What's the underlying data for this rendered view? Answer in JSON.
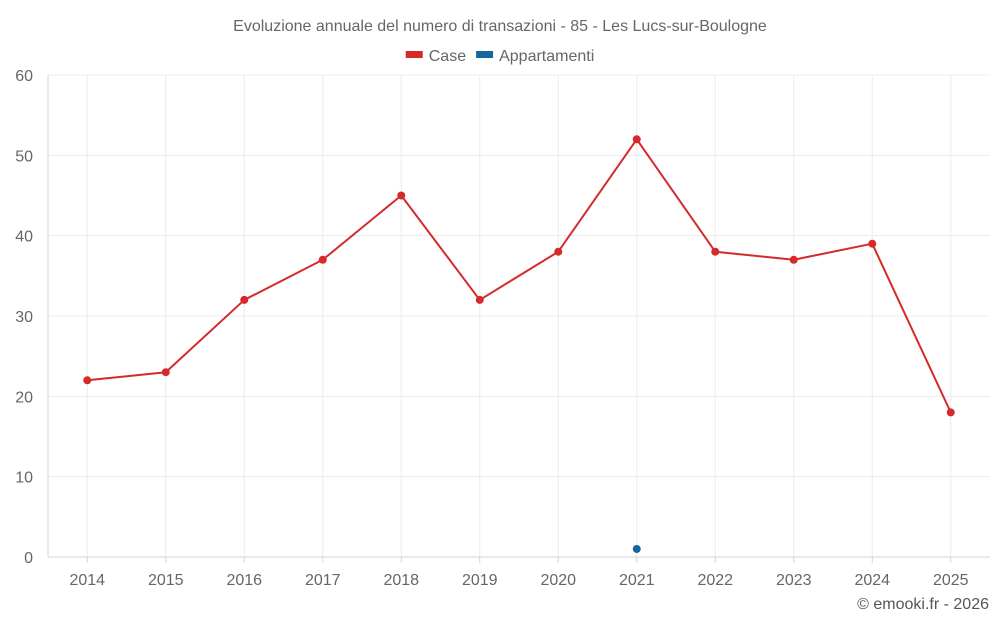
{
  "chart_data": {
    "type": "line",
    "title": "Evoluzione annuale del numero di transazioni - 85 - Les Lucs-sur-Boulogne",
    "categories": [
      "2014",
      "2015",
      "2016",
      "2017",
      "2018",
      "2019",
      "2020",
      "2021",
      "2022",
      "2023",
      "2024",
      "2025"
    ],
    "series": [
      {
        "name": "Case",
        "color": "#d42a2a",
        "values": [
          22,
          23,
          32,
          37,
          45,
          32,
          38,
          52,
          38,
          37,
          39,
          18
        ]
      },
      {
        "name": "Appartamenti",
        "color": "#1565a0",
        "values": [
          null,
          null,
          null,
          null,
          null,
          null,
          null,
          1,
          null,
          null,
          null,
          null
        ]
      }
    ],
    "ylim": [
      0,
      60
    ],
    "yticks": [
      0,
      10,
      20,
      30,
      40,
      50,
      60
    ],
    "grid": true,
    "legend": "top-center",
    "xlabel": "",
    "ylabel": ""
  },
  "credit": "© emooki.fr - 2026"
}
